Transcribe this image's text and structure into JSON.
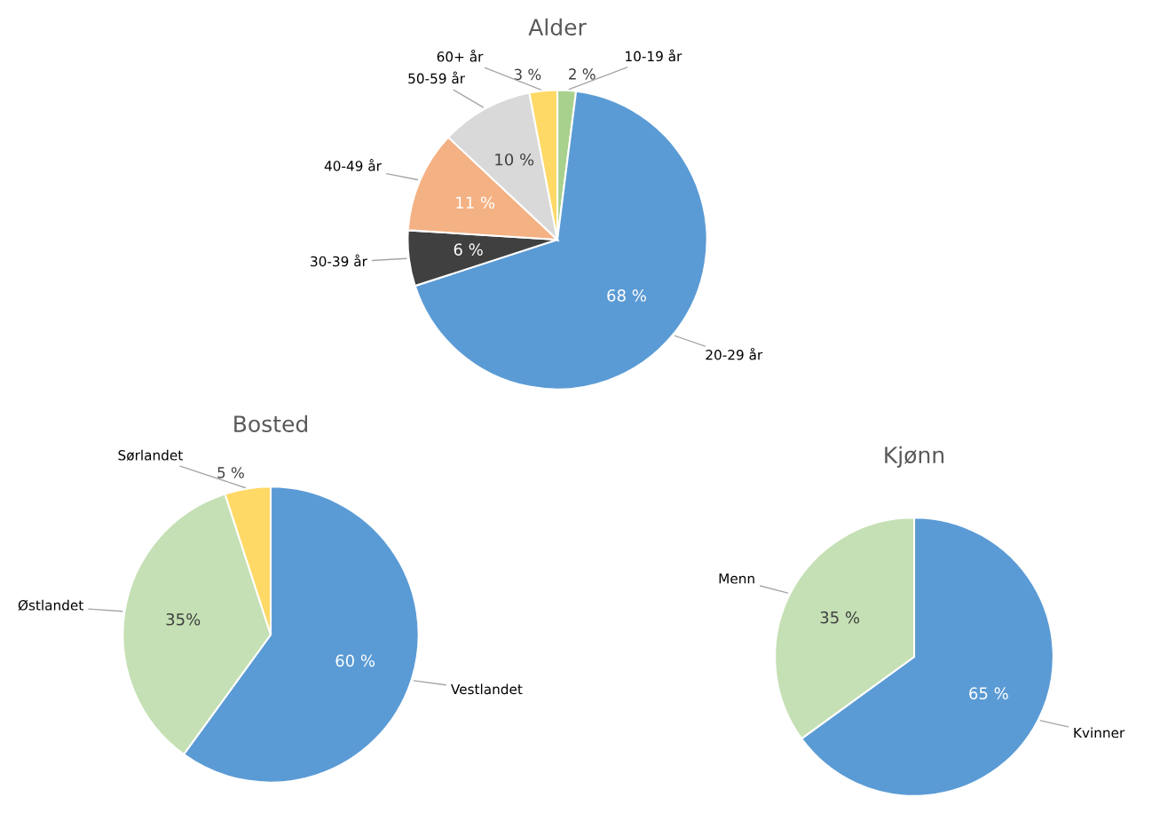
{
  "chart_data": [
    {
      "type": "pie",
      "title": "Alder",
      "categories": [
        "10-19 år",
        "20-29 år",
        "30-39 år",
        "40-49 år",
        "50-59 år",
        "60+ år"
      ],
      "values": [
        2,
        68,
        6,
        11,
        10,
        3
      ],
      "colors": [
        "#a9d18e",
        "#5b9bd5",
        "#404040",
        "#f4b183",
        "#d9d9d9",
        "#ffd966"
      ],
      "value_labels": [
        "2 %",
        "68 %",
        "6 %",
        "11 %",
        "10 %",
        "3 %"
      ]
    },
    {
      "type": "pie",
      "title": "Bosted",
      "categories": [
        "Vestlandet",
        "Østlandet",
        "Sørlandet"
      ],
      "values": [
        60,
        35,
        5
      ],
      "colors": [
        "#5b9bd5",
        "#c5e0b4",
        "#ffd966"
      ],
      "value_labels": [
        "60 %",
        "35%",
        "5 %"
      ]
    },
    {
      "type": "pie",
      "title": "Kjønn",
      "categories": [
        "Kvinner",
        "Menn"
      ],
      "values": [
        65,
        35
      ],
      "colors": [
        "#5b9bd5",
        "#c5e0b4"
      ],
      "value_labels": [
        "65 %",
        "35 %"
      ]
    }
  ]
}
